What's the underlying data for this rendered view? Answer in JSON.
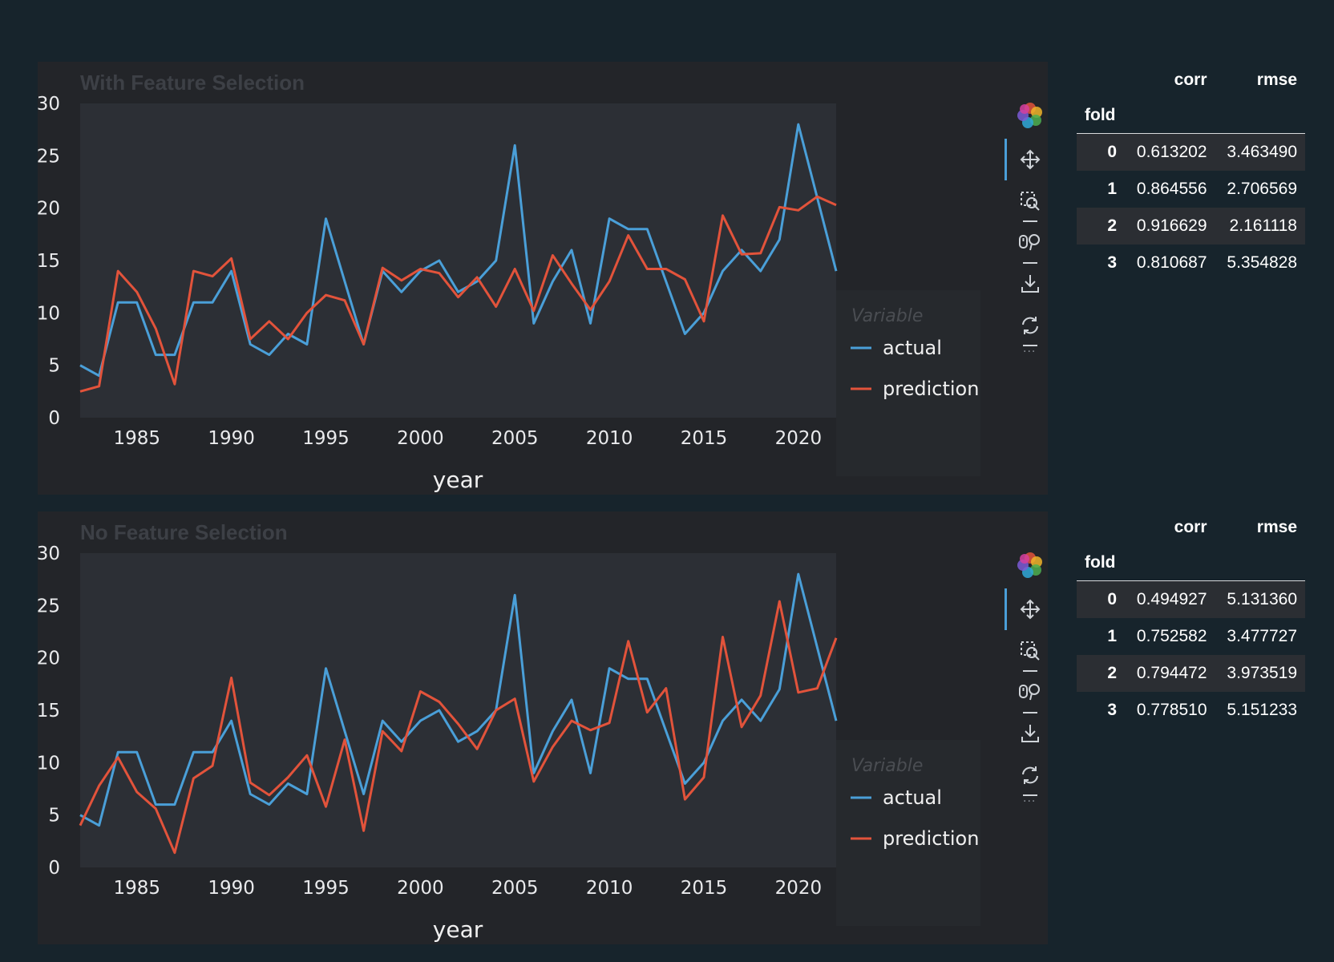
{
  "panels": [
    {
      "title": "With Feature Selection",
      "xlabel": "year",
      "legend_title": "Variable",
      "table": {
        "columns": [
          "corr",
          "rmse"
        ],
        "index_name": "fold",
        "rows": [
          {
            "fold": "0",
            "corr": "0.613202",
            "rmse": "3.463490"
          },
          {
            "fold": "1",
            "corr": "0.864556",
            "rmse": "2.706569"
          },
          {
            "fold": "2",
            "corr": "0.916629",
            "rmse": "2.161118"
          },
          {
            "fold": "3",
            "corr": "0.810687",
            "rmse": "5.354828"
          }
        ]
      }
    },
    {
      "title": "No Feature Selection",
      "xlabel": "year",
      "legend_title": "Variable",
      "table": {
        "columns": [
          "corr",
          "rmse"
        ],
        "index_name": "fold",
        "rows": [
          {
            "fold": "0",
            "corr": "0.494927",
            "rmse": "5.131360"
          },
          {
            "fold": "1",
            "corr": "0.752582",
            "rmse": "3.477727"
          },
          {
            "fold": "2",
            "corr": "0.794472",
            "rmse": "3.973519"
          },
          {
            "fold": "3",
            "corr": "0.778510",
            "rmse": "5.151233"
          }
        ]
      }
    }
  ],
  "toolbar": {
    "icons": [
      "bokeh-logo-icon",
      "pan-icon",
      "box-zoom-icon",
      "wheel-zoom-icon",
      "save-icon",
      "reset-icon"
    ]
  },
  "colors": {
    "actual": "#4a9fd8",
    "prediction": "#e2533b",
    "page_background": "#17242c",
    "panel_background": "#232529",
    "plot_background": "#2c2f35"
  },
  "chart_data": [
    {
      "type": "line",
      "title": "With Feature Selection",
      "xlabel": "year",
      "ylabel": "",
      "xlim": [
        1982,
        2022
      ],
      "ylim": [
        0,
        30
      ],
      "x_ticks": [
        1985,
        1990,
        1995,
        2000,
        2005,
        2010,
        2015,
        2020
      ],
      "y_ticks": [
        0,
        5,
        10,
        15,
        20,
        25,
        30
      ],
      "grid": false,
      "legend": {
        "title": "Variable",
        "position": "right"
      },
      "x": [
        1982,
        1983,
        1984,
        1985,
        1986,
        1987,
        1988,
        1989,
        1990,
        1991,
        1992,
        1993,
        1994,
        1995,
        1996,
        1997,
        1998,
        1999,
        2000,
        2001,
        2002,
        2003,
        2004,
        2005,
        2006,
        2007,
        2008,
        2009,
        2010,
        2011,
        2012,
        2013,
        2014,
        2015,
        2016,
        2017,
        2018,
        2019,
        2020,
        2021,
        2022
      ],
      "series": [
        {
          "name": "actual",
          "values": [
            5,
            4,
            11,
            11,
            6,
            6,
            11,
            11,
            14,
            7,
            6,
            8,
            7,
            19,
            13,
            7,
            14,
            12,
            14,
            15,
            12,
            13,
            15,
            26,
            9,
            13,
            16,
            9,
            19,
            18,
            18,
            13,
            8,
            10,
            14,
            16,
            14,
            17,
            28,
            21,
            14
          ]
        },
        {
          "name": "prediction",
          "values": [
            2.5,
            3,
            14,
            12,
            8.5,
            3.2,
            14,
            13.5,
            15.2,
            7.5,
            9.2,
            7.5,
            10,
            11.7,
            11.2,
            7,
            14.3,
            13.1,
            14.2,
            13.8,
            11.5,
            13.4,
            10.6,
            14.2,
            10.2,
            15.5,
            12.8,
            10.3,
            13,
            17.4,
            14.2,
            14.2,
            13.2,
            9.2,
            19.3,
            15.6,
            15.7,
            20.1,
            19.8,
            21.1,
            20.3
          ]
        }
      ]
    },
    {
      "type": "line",
      "title": "No Feature Selection",
      "xlabel": "year",
      "ylabel": "",
      "xlim": [
        1982,
        2022
      ],
      "ylim": [
        0,
        30
      ],
      "x_ticks": [
        1985,
        1990,
        1995,
        2000,
        2005,
        2010,
        2015,
        2020
      ],
      "y_ticks": [
        0,
        5,
        10,
        15,
        20,
        25,
        30
      ],
      "grid": false,
      "legend": {
        "title": "Variable",
        "position": "right"
      },
      "x": [
        1982,
        1983,
        1984,
        1985,
        1986,
        1987,
        1988,
        1989,
        1990,
        1991,
        1992,
        1993,
        1994,
        1995,
        1996,
        1997,
        1998,
        1999,
        2000,
        2001,
        2002,
        2003,
        2004,
        2005,
        2006,
        2007,
        2008,
        2009,
        2010,
        2011,
        2012,
        2013,
        2014,
        2015,
        2016,
        2017,
        2018,
        2019,
        2020,
        2021,
        2022
      ],
      "series": [
        {
          "name": "actual",
          "values": [
            5,
            4,
            11,
            11,
            6,
            6,
            11,
            11,
            14,
            7,
            6,
            8,
            7,
            19,
            13,
            7,
            14,
            12,
            14,
            15,
            12,
            13,
            15,
            26,
            9,
            13,
            16,
            9,
            19,
            18,
            18,
            13,
            8,
            10,
            14,
            16,
            14,
            17,
            28,
            21,
            14
          ]
        },
        {
          "name": "prediction",
          "values": [
            4,
            7.8,
            10.5,
            7.2,
            5.6,
            1.4,
            8.5,
            9.7,
            18.1,
            8.1,
            6.9,
            8.6,
            10.7,
            5.8,
            12.2,
            3.5,
            13,
            11.1,
            16.8,
            15.8,
            13.7,
            11.3,
            15,
            16.1,
            8.2,
            11.5,
            14,
            13.1,
            13.8,
            21.6,
            14.8,
            17.1,
            6.5,
            8.6,
            22,
            13.4,
            16.4,
            25.4,
            16.7,
            17.1,
            21.9
          ]
        }
      ]
    }
  ]
}
